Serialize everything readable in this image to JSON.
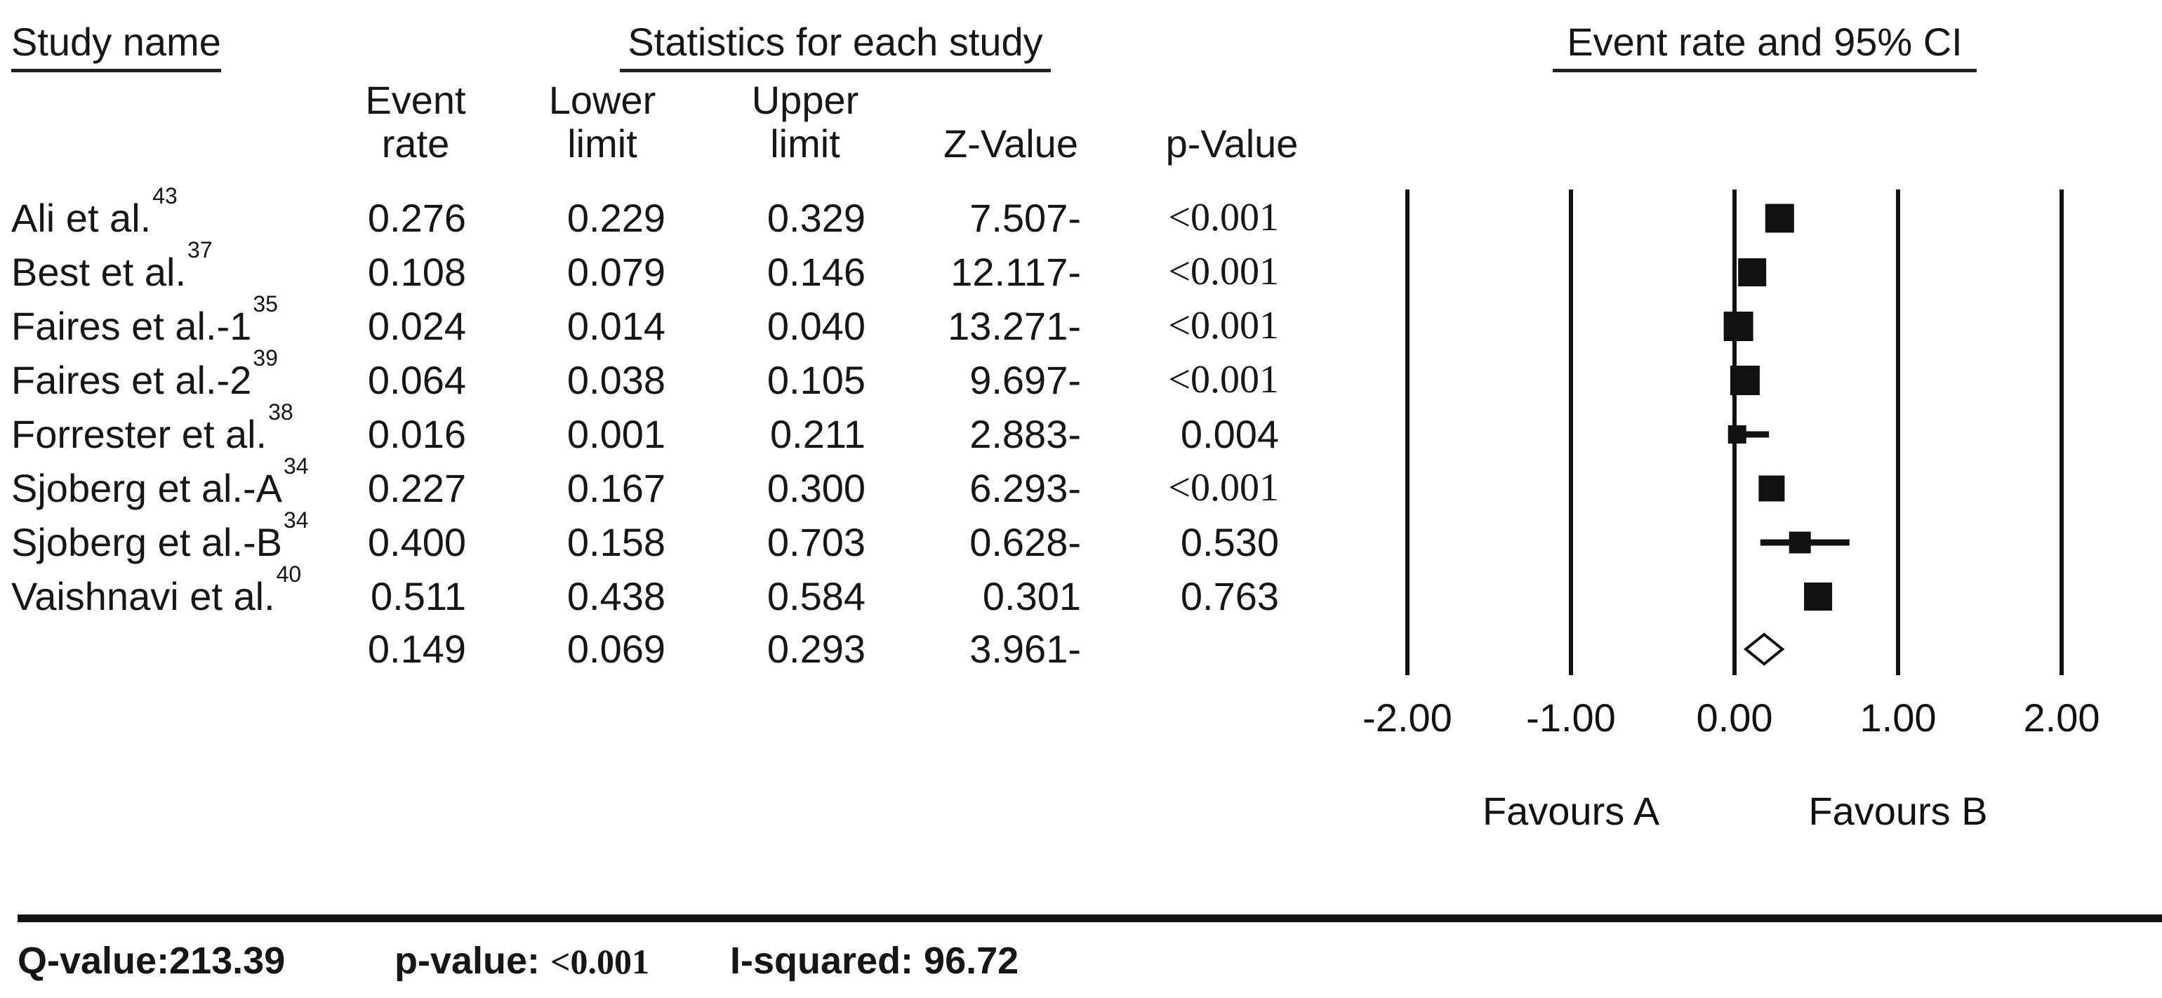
{
  "headers": {
    "study": "Study name",
    "statistics": "Statistics for each study",
    "plot": "Event rate and 95% CI"
  },
  "columns": {
    "event_rate": "Event\nrate",
    "lower_limit": "Lower\nlimit",
    "upper_limit": "Upper\nlimit",
    "z_value": "Z-Value",
    "p_value": "p-Value"
  },
  "chart_data": {
    "type": "forest",
    "title": "Event rate and 95% CI",
    "x_axis": {
      "tick_labels": [
        "-2.00",
        "-1.00",
        "0.00",
        "1.00",
        "2.00"
      ],
      "tick_values": [
        -2,
        -1,
        0,
        1,
        2
      ],
      "xlim": [
        -2.3,
        2.3
      ],
      "grid": "vertical-lines"
    },
    "favours_left": "Favours A",
    "favours_right": "Favours B",
    "studies": [
      {
        "name": "Ali et al.",
        "ref": "43",
        "event_rate": "0.276",
        "lower": "0.229",
        "upper": "0.329",
        "z_value": "7.507-",
        "p_value": "<0.001",
        "weight": 41
      },
      {
        "name": "Best et al.",
        "ref": "37",
        "event_rate": "0.108",
        "lower": "0.079",
        "upper": "0.146",
        "z_value": "12.117-",
        "p_value": "<0.001",
        "weight": 40
      },
      {
        "name": "Faires et al.-1",
        "ref": "35",
        "event_rate": "0.024",
        "lower": "0.014",
        "upper": "0.040",
        "z_value": "13.271-",
        "p_value": "<0.001",
        "weight": 42
      },
      {
        "name": "Faires et al.-2",
        "ref": "39",
        "event_rate": "0.064",
        "lower": "0.038",
        "upper": "0.105",
        "z_value": "9.697-",
        "p_value": "<0.001",
        "weight": 42
      },
      {
        "name": "Forrester et al.",
        "ref": "38",
        "event_rate": "0.016",
        "lower": "0.001",
        "upper": "0.211",
        "z_value": "2.883-",
        "p_value": "0.004",
        "weight": 26
      },
      {
        "name": "Sjoberg et al.-A",
        "ref": "34",
        "event_rate": "0.227",
        "lower": "0.167",
        "upper": "0.300",
        "z_value": "6.293-",
        "p_value": "<0.001",
        "weight": 37
      },
      {
        "name": "Sjoberg et al.-B",
        "ref": "34",
        "event_rate": "0.400",
        "lower": "0.158",
        "upper": "0.703",
        "z_value": "0.628-",
        "p_value": "0.530",
        "weight": 31
      },
      {
        "name": "Vaishnavi et al.",
        "ref": "40",
        "event_rate": "0.511",
        "lower": "0.438",
        "upper": "0.584",
        "z_value": "0.301",
        "p_value": "0.763",
        "weight": 40
      }
    ],
    "pooled": {
      "event_rate": "0.149",
      "lower": "0.069",
      "upper": "0.293",
      "z_value": "3.961-",
      "p_value": ""
    }
  },
  "footer": {
    "q_label": "Q-value:",
    "q_value": "213.39",
    "p_label": "p-value: ",
    "p_value": "<0.001",
    "i_label": "I-squared: ",
    "i_value": "96.72"
  },
  "colors": {
    "ink": "#161616",
    "marker": "#111111",
    "background": "#ffffff"
  }
}
